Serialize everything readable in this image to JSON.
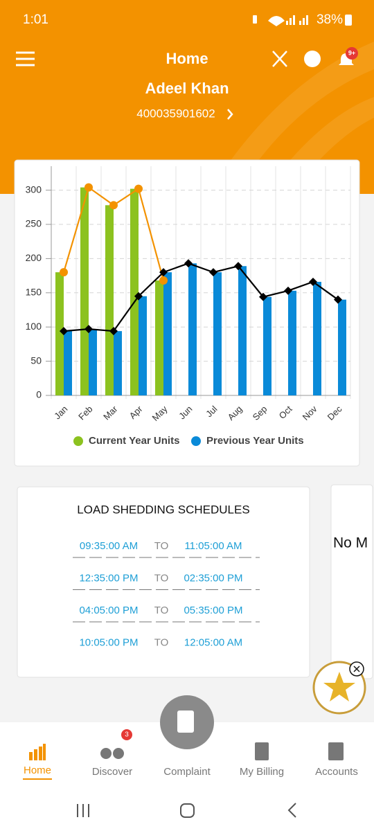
{
  "status_bar": {
    "time": "1:01",
    "battery": "38%"
  },
  "header": {
    "title": "Home",
    "notification_badge": "9+",
    "user_name": "Adeel Khan",
    "account_number": "400035901602"
  },
  "chart_data": {
    "type": "bar",
    "categories": [
      "Jan",
      "Feb",
      "Mar",
      "Apr",
      "May",
      "Jun",
      "Jul",
      "Aug",
      "Sep",
      "Oct",
      "Nov",
      "Dec"
    ],
    "series": [
      {
        "name": "Current Year Units",
        "color": "#8cc21f",
        "line_color": "#f39200",
        "marker": "circle",
        "values": [
          180,
          304,
          278,
          302,
          168,
          null,
          null,
          null,
          null,
          null,
          null,
          null
        ]
      },
      {
        "name": "Previous Year Units",
        "color": "#0a8ad8",
        "line_color": "#000000",
        "marker": "diamond",
        "values": [
          94,
          97,
          94,
          145,
          180,
          193,
          180,
          189,
          144,
          153,
          166,
          140
        ]
      }
    ],
    "ylim": [
      0,
      335
    ],
    "yticks": [
      0,
      50,
      100,
      150,
      200,
      250,
      300
    ],
    "grid": true,
    "legend": "bottom"
  },
  "load_shedding": {
    "title": "LOAD SHEDDING SCHEDULES",
    "rows": [
      {
        "from": "09:35:00 AM",
        "separator": "TO",
        "to": "11:05:00 AM"
      },
      {
        "from": "12:35:00 PM",
        "separator": "TO",
        "to": "02:35:00 PM"
      },
      {
        "from": "04:05:00 PM",
        "separator": "TO",
        "to": "05:35:00 PM"
      },
      {
        "from": "10:05:00 PM",
        "separator": "TO",
        "to": "12:05:00 AM"
      }
    ]
  },
  "side_card": {
    "text": "No M"
  },
  "bottom_nav": {
    "items": [
      "Home",
      "Discover",
      "Complaint",
      "My Billing",
      "Accounts"
    ],
    "discover_badge": "3"
  }
}
